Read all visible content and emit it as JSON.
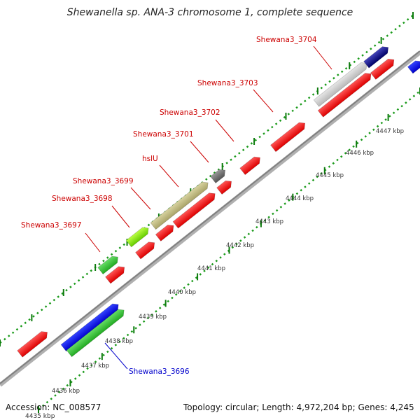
{
  "title": "Shewanella sp. ANA-3 chromosome 1, complete sequence",
  "footer": {
    "accession": "Accession: NC_008577",
    "info": "Topology: circular; Length: 4,972,204 bp; Genes: 4,245"
  },
  "colors": {
    "forward_gene": "#ff1a1a",
    "reverse_gene": "#ff1a1a",
    "backbone": "#999999",
    "tick_green": "#1a9a1a",
    "label_red": "#cc0000",
    "label_blue": "#0000cc"
  },
  "ticks": {
    "unit": "kbp",
    "labels": [
      "4436 kbp",
      "4437 kbp",
      "4438 kbp",
      "4439 kbp",
      "4440 kbp",
      "4441 kbp",
      "4442 kbp",
      "4443 kbp",
      "4444 kbp",
      "4445 kbp",
      "4446 kbp",
      "4447 kbp"
    ],
    "partial_label": "4435 kbp"
  },
  "gene_labels": [
    {
      "name": "Shewana3_3696",
      "color": "blue"
    },
    {
      "name": "Shewana3_3697",
      "color": "red"
    },
    {
      "name": "Shewana3_3698",
      "color": "red"
    },
    {
      "name": "Shewana3_3699",
      "color": "red"
    },
    {
      "name": "hslU",
      "color": "red"
    },
    {
      "name": "Shewana3_3701",
      "color": "red"
    },
    {
      "name": "Shewana3_3702",
      "color": "red"
    },
    {
      "name": "Shewana3_3703",
      "color": "red"
    },
    {
      "name": "Shewana3_3704",
      "color": "red"
    }
  ]
}
